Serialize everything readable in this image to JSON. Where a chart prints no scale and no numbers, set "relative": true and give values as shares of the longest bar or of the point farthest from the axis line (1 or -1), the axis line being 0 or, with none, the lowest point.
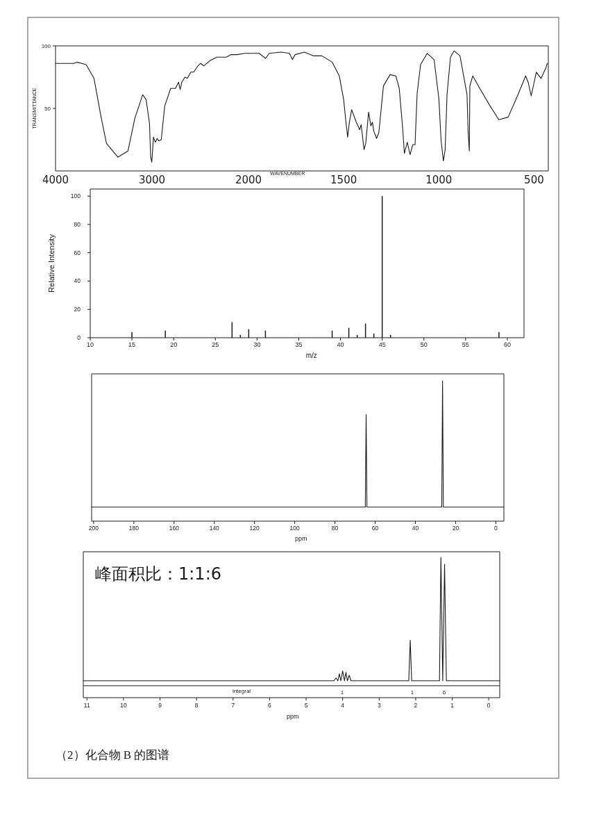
{
  "chart_data": [
    {
      "type": "line",
      "ylabel": "TRANSMITTANCE",
      "color": "#1a1a1a",
      "xlim": [
        4000,
        2000
      ],
      "ylim": [
        0,
        100
      ],
      "xticks": [
        4000,
        3000,
        2000
      ],
      "yticks": [
        50,
        100
      ],
      "x": [
        4000,
        3812,
        3777,
        3683,
        3601,
        3530,
        3472,
        3354,
        3249,
        3178,
        3096,
        3061,
        3026,
        3014,
        3002,
        2985,
        2966,
        2946,
        2929,
        2904,
        2892,
        2868,
        2806,
        2757,
        2725,
        2708,
        2691,
        2659,
        2634,
        2597,
        2568,
        2524,
        2495,
        2463,
        2402,
        2328,
        2230,
        2181,
        2120,
        2035,
        2000
      ],
      "values": [
        86,
        86,
        87,
        85,
        74,
        44,
        22,
        11,
        16,
        42,
        61,
        57,
        38,
        11,
        7,
        27,
        23,
        26,
        24,
        25,
        34,
        52,
        66,
        66,
        71,
        65,
        71,
        75,
        74,
        79,
        79,
        84,
        86,
        84,
        88,
        91,
        91,
        93,
        93,
        94,
        94
      ]
    },
    {
      "type": "line",
      "xlabel": "WAVENUMBER",
      "color": "#1a1a1a",
      "tick_labels": "x",
      "xlim": [
        2000,
        425
      ],
      "ylim": [
        0,
        100
      ],
      "xticks": [
        1500,
        1000,
        500
      ],
      "x": [
        2000,
        1944,
        1910,
        1891,
        1828,
        1785,
        1769,
        1755,
        1706,
        1658,
        1615,
        1560,
        1523,
        1500,
        1488,
        1479,
        1470,
        1458,
        1434,
        1416,
        1408,
        1393,
        1384,
        1369,
        1357,
        1349,
        1342,
        1327,
        1315,
        1291,
        1256,
        1226,
        1208,
        1190,
        1181,
        1166,
        1151,
        1137,
        1125,
        1114,
        1096,
        1061,
        1025,
        1000,
        988,
        976,
        967,
        957,
        939,
        920,
        889,
        865,
        852,
        846,
        840,
        837,
        822,
        785,
        735,
        685,
        636,
        587,
        544,
        531,
        515,
        488,
        463,
        439,
        430
      ],
      "values": [
        94,
        94,
        90,
        94,
        95,
        94,
        89,
        93,
        95,
        92,
        92,
        87,
        76,
        57,
        39,
        27,
        39,
        49,
        39,
        33,
        37,
        17,
        22,
        47,
        36,
        39,
        32,
        26,
        31,
        68,
        77,
        76,
        66,
        34,
        14,
        23,
        13,
        21,
        21,
        62,
        85,
        94,
        89,
        58,
        24,
        8,
        17,
        61,
        91,
        96,
        92,
        72,
        61,
        31,
        16,
        68,
        76,
        66,
        53,
        41,
        43,
        60,
        76,
        71,
        60,
        79,
        74,
        82,
        86
      ]
    },
    {
      "type": "bar",
      "xlabel": "m/z",
      "ylabel": "Relative Intensity",
      "color": "#1a1a1a",
      "xlim": [
        10,
        62
      ],
      "ylim": [
        0,
        105
      ],
      "xticks": [
        10,
        15,
        20,
        25,
        30,
        35,
        40,
        45,
        50,
        55,
        60
      ],
      "yticks": [
        0,
        20,
        40,
        60,
        80,
        100
      ],
      "x": [
        15,
        19,
        27,
        28,
        29,
        31,
        39,
        41,
        42,
        43,
        44,
        45,
        46,
        59
      ],
      "values": [
        4,
        5,
        11,
        2,
        6,
        5,
        5,
        7,
        2,
        10,
        3,
        100,
        2,
        4
      ]
    },
    {
      "type": "line",
      "relative": true,
      "xlabel": "ppm",
      "color": "#1a1a1a",
      "xlim": [
        201,
        -4
      ],
      "xticks": [
        200,
        180,
        160,
        140,
        120,
        100,
        80,
        60,
        40,
        20,
        0
      ],
      "x": [
        201,
        64.9,
        64.5,
        64.1,
        26.9,
        26.5,
        26.1,
        -4
      ],
      "values": [
        0.1,
        0.1,
        0.76,
        0.1,
        0.1,
        1,
        0.1,
        0.1
      ]
    },
    {
      "type": "line",
      "relative": true,
      "xlabel": "ppm",
      "color": "#1a1a1a",
      "xlim": [
        11.1,
        -0.3
      ],
      "xticks": [
        11,
        10,
        9,
        8,
        7,
        6,
        5,
        4,
        3,
        2,
        1,
        0
      ],
      "x": [
        11.1,
        4.24,
        4.18,
        4.13,
        4.09,
        4.05,
        4.0,
        3.95,
        3.91,
        3.87,
        3.82,
        3.77,
        2.19,
        2.15,
        2.11,
        1.35,
        1.31,
        1.26,
        1.21,
        1.16,
        -0.3
      ],
      "values": [
        0.12,
        0.12,
        0.14,
        0.12,
        0.17,
        0.12,
        0.19,
        0.12,
        0.18,
        0.12,
        0.16,
        0.12,
        0.12,
        0.41,
        0.12,
        0.12,
        1,
        0.12,
        0.95,
        0.12,
        0.12
      ],
      "ref_lines": [
        {
          "axis": "y",
          "value": 0.085,
          "label": "integral"
        }
      ],
      "annotations": [
        "峰面积比：1:1:6",
        "1",
        "1",
        "6",
        "（2）化合物 B 的图谱"
      ]
    }
  ]
}
